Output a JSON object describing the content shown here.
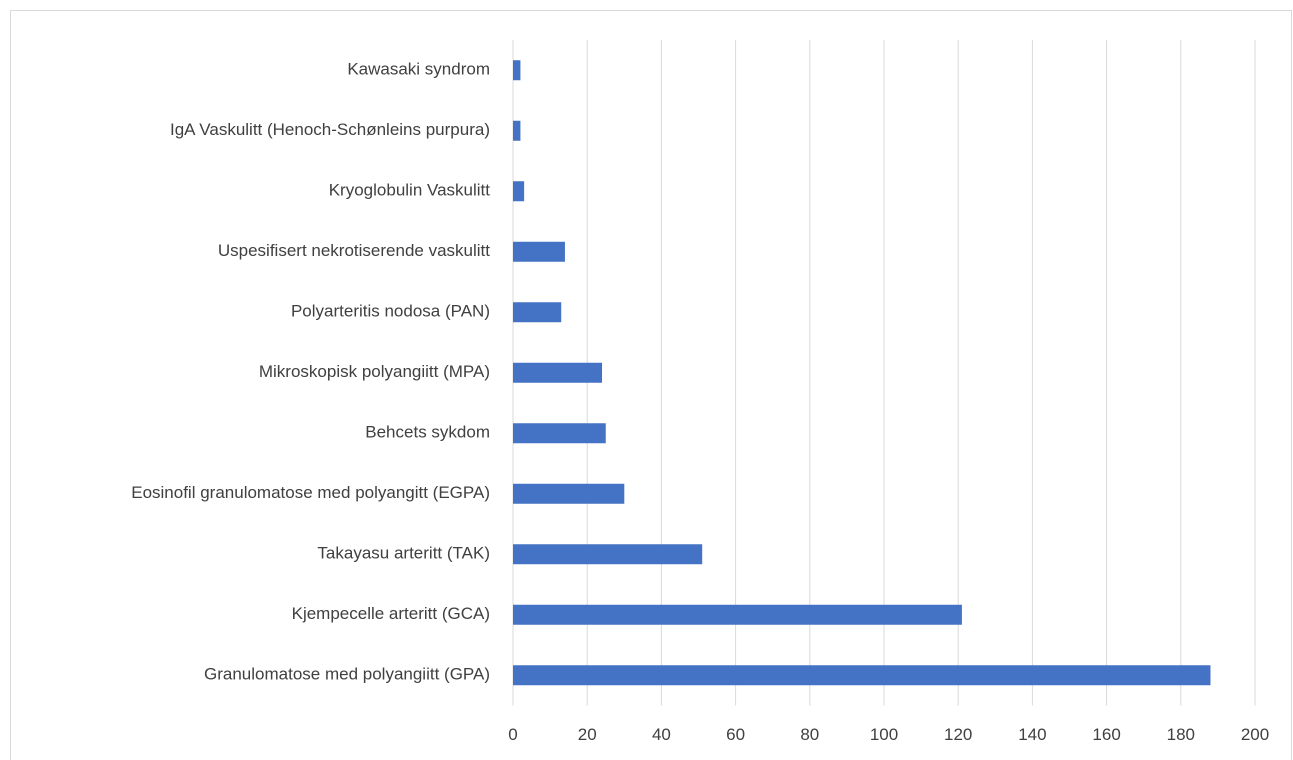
{
  "chart_data": {
    "type": "bar",
    "orientation": "horizontal",
    "categories": [
      "Kawasaki syndrom",
      "IgA Vaskulitt (Henoch-Schønleins purpura)",
      "Kryoglobulin Vaskulitt",
      "Uspesifisert nekrotiserende vaskulitt",
      "Polyarteritis nodosa (PAN)",
      "Mikroskopisk polyangiitt (MPA)",
      "Behcets sykdom",
      "Eosinofil granulomatose med polyangitt (EGPA)",
      "Takayasu arteritt (TAK)",
      "Kjempecelle arteritt (GCA)",
      "Granulomatose med polyangiitt (GPA)"
    ],
    "values": [
      2,
      2,
      3,
      14,
      13,
      24,
      25,
      30,
      51,
      121,
      188
    ],
    "color": "#4472c4",
    "xlim": [
      0,
      200
    ],
    "xticks": [
      0,
      20,
      40,
      60,
      80,
      100,
      120,
      140,
      160,
      180,
      200
    ],
    "grid": true
  }
}
